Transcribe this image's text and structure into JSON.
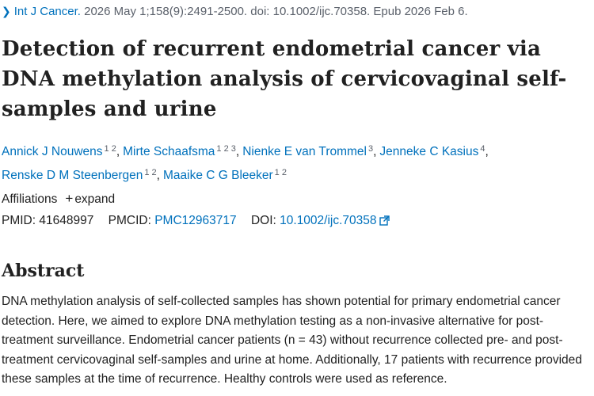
{
  "citation": {
    "journal": "Int J Cancer.",
    "details": "2026 May 1;158(9):2491-2500. doi: 10.1002/ijc.70358. Epub 2026 Feb 6."
  },
  "title": "Detection of recurrent endometrial cancer via DNA methylation analysis of cervicovaginal self-samples and urine",
  "authors": [
    {
      "name": "Annick J Nouwens",
      "affil": "1 2"
    },
    {
      "name": "Mirte Schaafsma",
      "affil": "1 2 3"
    },
    {
      "name": "Nienke E van Trommel",
      "affil": "3"
    },
    {
      "name": "Jenneke C Kasius",
      "affil": "4"
    },
    {
      "name": "Renske D M Steenbergen",
      "affil": "1 2"
    },
    {
      "name": "Maaike C G Bleeker",
      "affil": "1 2"
    }
  ],
  "affiliations": {
    "label": "Affiliations",
    "expand": "expand"
  },
  "identifiers": {
    "pmid_label": "PMID:",
    "pmid": "41648997",
    "pmcid_label": "PMCID:",
    "pmcid": "PMC12963717",
    "doi_label": "DOI:",
    "doi": "10.1002/ijc.70358"
  },
  "abstract": {
    "heading": "Abstract",
    "text": "DNA methylation analysis of self-collected samples has shown potential for primary endometrial cancer detection. Here, we aimed to explore DNA methylation testing as a non-invasive alternative for post-treatment surveillance. Endometrial cancer patients (n = 43) without recurrence collected pre- and post-treatment cervicovaginal self-samples and urine at home. Additionally, 17 patients with recurrence provided these samples at the time of recurrence. Healthy controls were used as reference."
  },
  "colors": {
    "link": "#0071bc",
    "text": "#212121",
    "muted": "#5b616b"
  }
}
